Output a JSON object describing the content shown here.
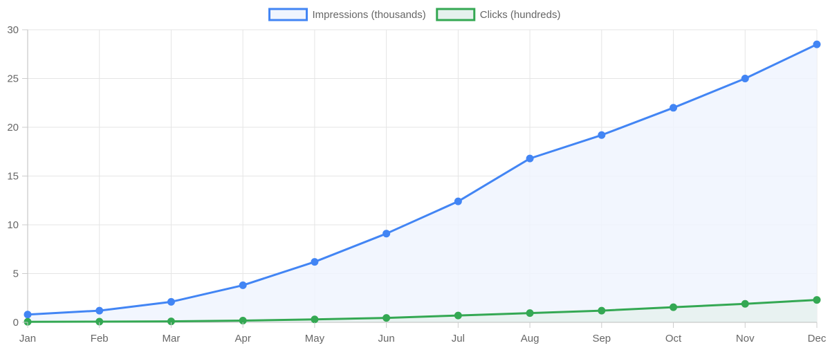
{
  "chart_data": {
    "type": "line",
    "categories": [
      "Jan",
      "Feb",
      "Mar",
      "Apr",
      "May",
      "Jun",
      "Jul",
      "Aug",
      "Sep",
      "Oct",
      "Nov",
      "Dec"
    ],
    "series": [
      {
        "name": "Impressions (thousands)",
        "values": [
          0.8,
          1.2,
          2.1,
          3.8,
          6.2,
          9.1,
          12.4,
          16.8,
          19.2,
          22.0,
          25.0,
          28.5
        ],
        "color": "#4285f4",
        "fill": "#f0f5fe"
      },
      {
        "name": "Clicks (hundreds)",
        "values": [
          0.05,
          0.07,
          0.1,
          0.18,
          0.3,
          0.45,
          0.7,
          0.95,
          1.2,
          1.55,
          1.9,
          2.3
        ],
        "color": "#34a853",
        "fill": "#e6f1ee"
      }
    ],
    "title": "",
    "xlabel": "",
    "ylabel": "",
    "ylim": [
      0,
      30
    ],
    "yticks": [
      "0",
      "5",
      "10",
      "15",
      "20",
      "25",
      "30"
    ],
    "grid": true,
    "legend": "top-center",
    "filled": true
  }
}
